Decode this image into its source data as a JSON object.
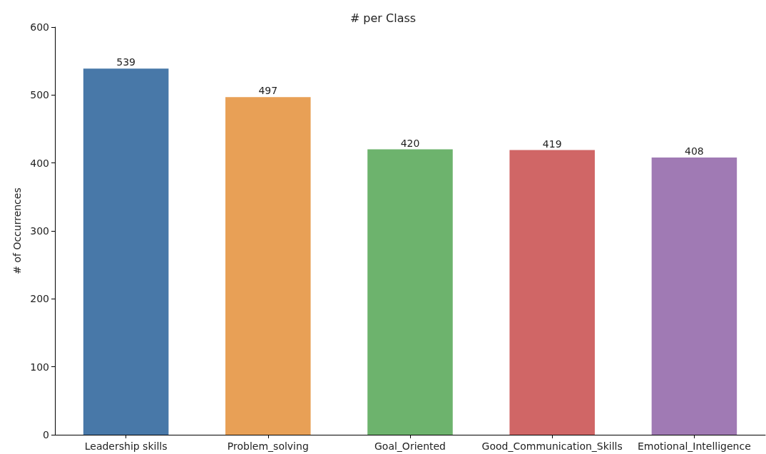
{
  "chart_data": {
    "type": "bar",
    "title": "# per Class",
    "ylabel": "# of Occurrences",
    "categories": [
      "Leadership skills",
      "Problem_solving",
      "Goal_Oriented",
      "Good_Communication_Skills",
      "Emotional_Intelligence"
    ],
    "values": [
      539,
      497,
      420,
      419,
      408
    ],
    "colors": [
      "#4878a8",
      "#e8a056",
      "#6db36d",
      "#d06666",
      "#a07ab4"
    ],
    "ylim": [
      0,
      600
    ],
    "yticks": [
      0,
      100,
      200,
      300,
      400,
      500,
      600
    ],
    "data_labels": true,
    "grid": false
  }
}
